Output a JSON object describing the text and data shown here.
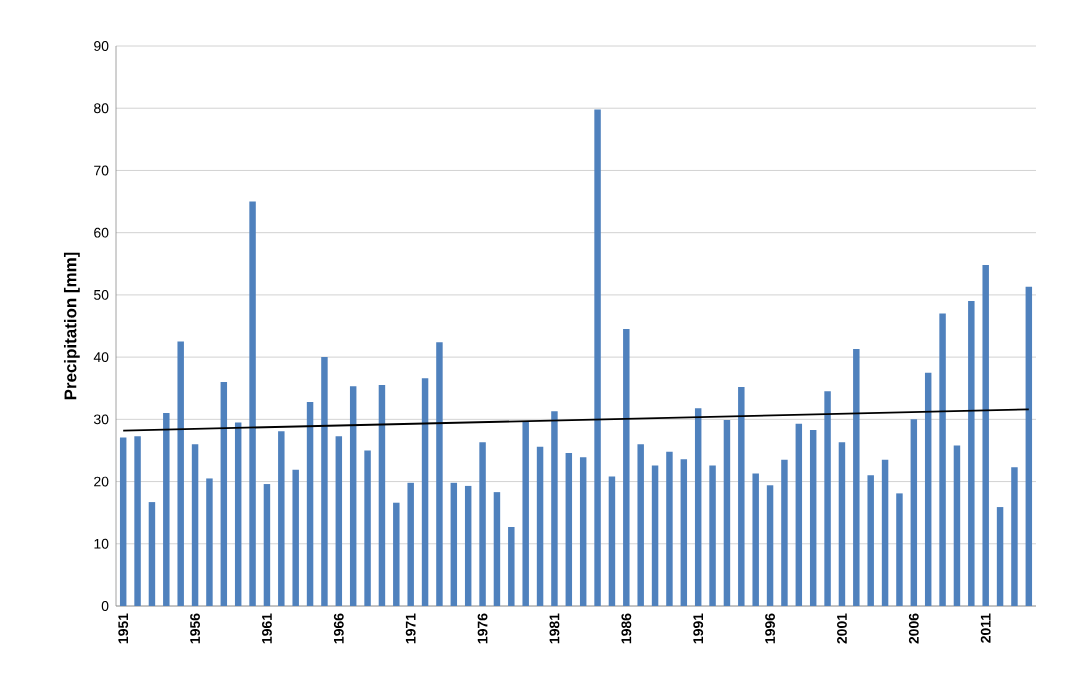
{
  "chart_data": {
    "type": "bar",
    "ylabel": "Precipitation [mm]",
    "x": [
      1951,
      1952,
      1953,
      1954,
      1955,
      1956,
      1957,
      1958,
      1959,
      1960,
      1961,
      1962,
      1963,
      1964,
      1965,
      1966,
      1967,
      1968,
      1969,
      1970,
      1971,
      1972,
      1973,
      1974,
      1975,
      1976,
      1977,
      1978,
      1979,
      1980,
      1981,
      1982,
      1983,
      1984,
      1985,
      1986,
      1987,
      1988,
      1989,
      1990,
      1991,
      1992,
      1993,
      1994,
      1995,
      1996,
      1997,
      1998,
      1999,
      2000,
      2001,
      2002,
      2003,
      2004,
      2005,
      2006,
      2007,
      2008,
      2009,
      2010,
      2011,
      2012,
      2013,
      2014
    ],
    "series": [
      {
        "color": "#4f81bd",
        "values": [
          27.1,
          27.3,
          16.7,
          31.0,
          42.5,
          26.0,
          20.5,
          36.0,
          29.5,
          65.0,
          19.6,
          28.1,
          21.9,
          32.8,
          40.0,
          27.3,
          35.3,
          25.0,
          35.5,
          16.6,
          19.8,
          36.6,
          42.4,
          19.8,
          19.3,
          26.3,
          18.3,
          12.7,
          29.6,
          25.6,
          31.3,
          24.6,
          23.9,
          79.8,
          20.8,
          44.5,
          26.0,
          22.6,
          24.8,
          23.6,
          31.8,
          22.6,
          29.9,
          35.2,
          21.3,
          19.4,
          23.5,
          29.3,
          28.3,
          34.5,
          26.3,
          41.3,
          21.0,
          23.5,
          18.1,
          30.0,
          37.5,
          47.0,
          25.8,
          49.0,
          54.8,
          15.9,
          22.3,
          51.3
        ]
      },
      {
        "type": "line",
        "color": "#000000",
        "x": [
          1951,
          2014
        ],
        "values": [
          28.2,
          31.6
        ]
      }
    ],
    "xlim": [
      1950.5,
      2014.5
    ],
    "xticks": [
      1951,
      1956,
      1961,
      1966,
      1971,
      1976,
      1981,
      1986,
      1991,
      1996,
      2001,
      2006,
      2011
    ],
    "ylim": [
      0,
      90
    ],
    "yticks": [
      0,
      10,
      20,
      30,
      40,
      50,
      60,
      70,
      80,
      90
    ],
    "grid": "y"
  }
}
